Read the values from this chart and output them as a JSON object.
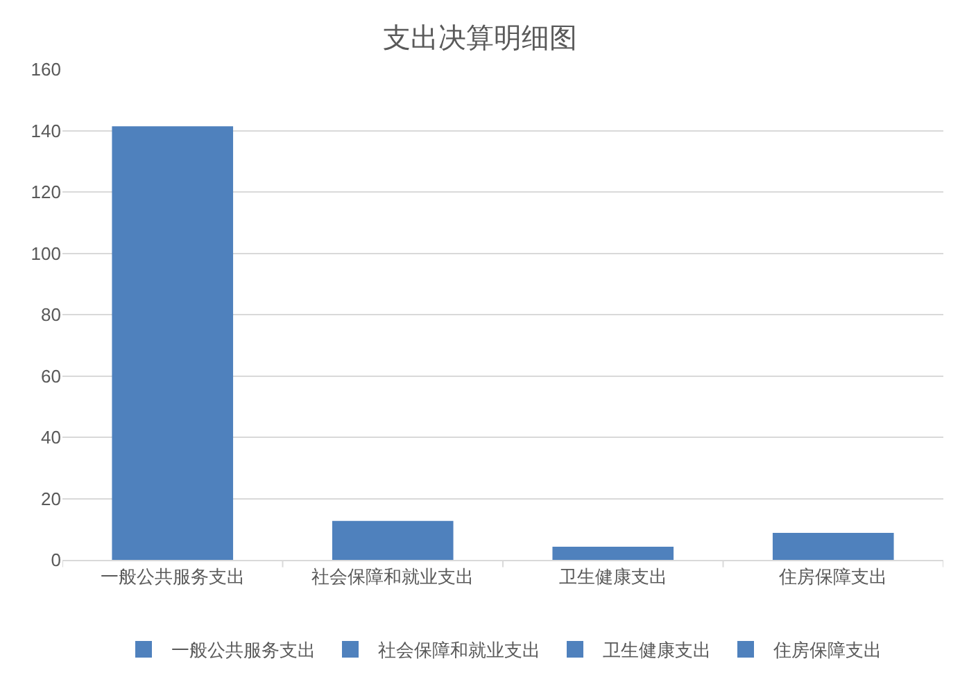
{
  "chart_data": {
    "type": "bar",
    "title": "支出决算明细图",
    "categories": [
      "一般公共服务支出",
      "社会保障和就业支出",
      "卫生健康支出",
      "住房保障支出"
    ],
    "series": [
      {
        "name": "一般公共服务支出",
        "color": "#4f81bd",
        "values": [
          141.4,
          null,
          null,
          null
        ]
      },
      {
        "name": "社会保障和就业支出",
        "color": "#4f81bd",
        "values": [
          null,
          12.7,
          null,
          null
        ]
      },
      {
        "name": "卫生健康支出",
        "color": "#4f81bd",
        "values": [
          null,
          null,
          4.3,
          null
        ]
      },
      {
        "name": "住房保障支出",
        "color": "#4f81bd",
        "values": [
          null,
          null,
          null,
          8.8
        ]
      }
    ],
    "ylim": [
      0,
      160
    ],
    "yticks": [
      0,
      20,
      40,
      60,
      80,
      100,
      120,
      140,
      160
    ],
    "grid": "y",
    "legend": "bottom"
  }
}
